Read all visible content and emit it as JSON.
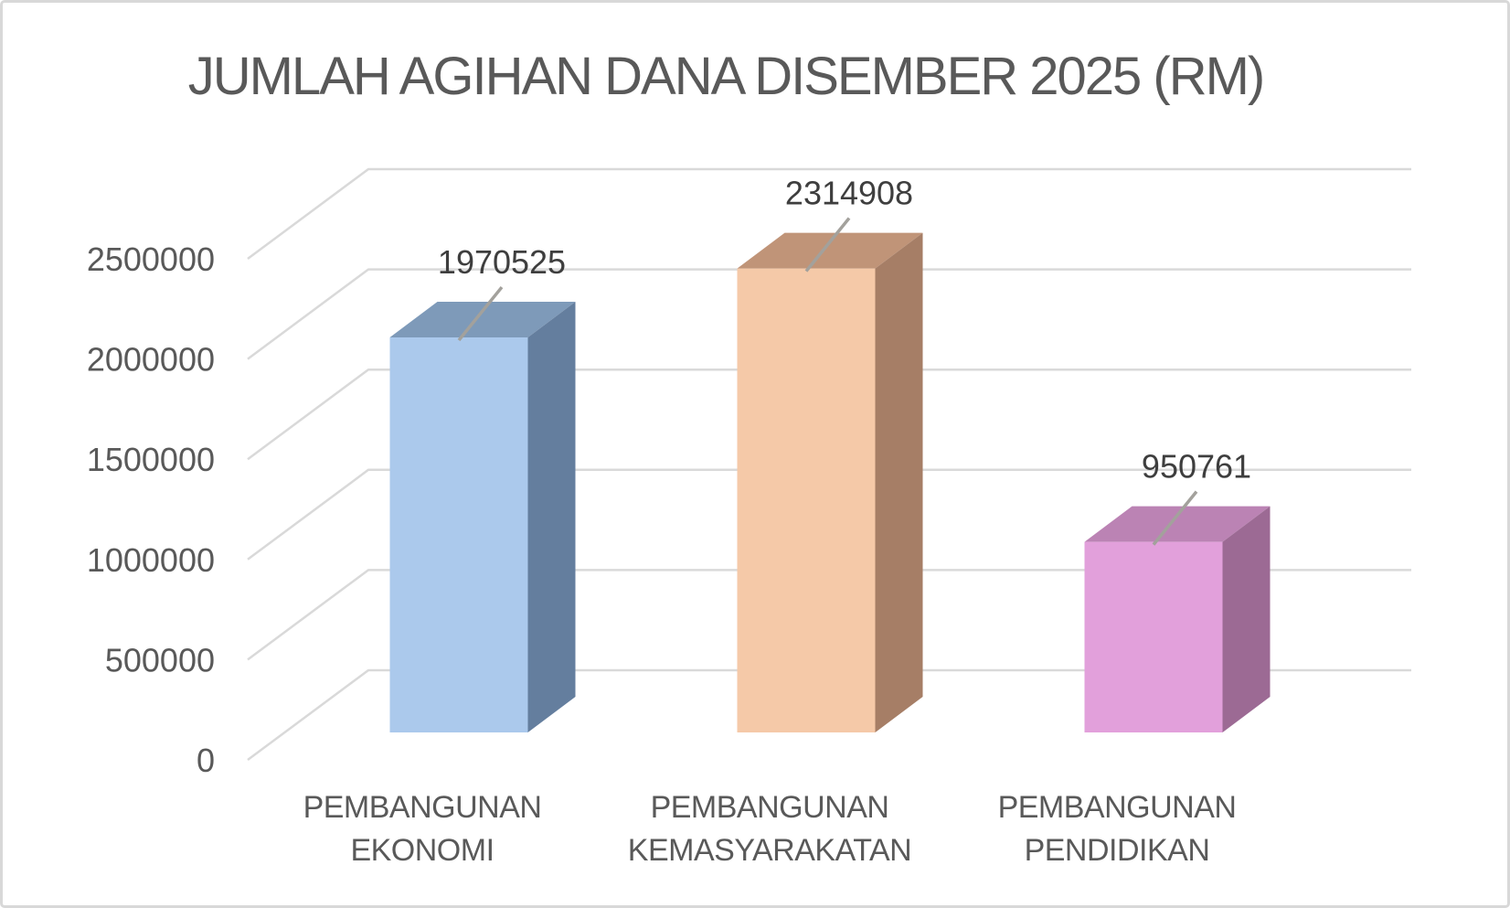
{
  "chart_data": {
    "type": "bar",
    "style": "3d-column",
    "title": "JUMLAH AGIHAN DANA DISEMBER 2025 (RM)",
    "categories": [
      "PEMBANGUNAN EKONOMI",
      "PEMBANGUNAN KEMASYARAKATAN",
      "PEMBANGUNAN PENDIDIKAN"
    ],
    "category_lines": [
      [
        "PEMBANGUNAN",
        "EKONOMI"
      ],
      [
        "PEMBANGUNAN",
        "KEMASYARAKATAN"
      ],
      [
        "PEMBANGUNAN",
        "PENDIDIKAN"
      ]
    ],
    "values": [
      1970525,
      2314908,
      950761
    ],
    "data_labels": [
      "1970525",
      "2314908",
      "950761"
    ],
    "xlabel": "",
    "ylabel": "",
    "ylim": [
      0,
      2500000
    ],
    "y_ticks": [
      0,
      500000,
      1000000,
      1500000,
      2000000,
      2500000
    ],
    "y_tick_labels": [
      "0",
      "500000",
      "1000000",
      "1500000",
      "2000000",
      "2500000"
    ],
    "grid": true,
    "legend": false,
    "colors": {
      "bars": [
        {
          "name": "blue",
          "front": "#ABC9EC",
          "top": "#7E9AB9",
          "side": "#647E9E"
        },
        {
          "name": "peach",
          "front": "#F5C9A8",
          "top": "#C09478",
          "side": "#A67E66"
        },
        {
          "name": "pink",
          "front": "#E2A0DB",
          "top": "#BB83B4",
          "side": "#9C6A94"
        }
      ],
      "gridline": "#D9D9D9",
      "leader_line": "#A3A19C",
      "title_text": "#595959",
      "axis_text": "#595959",
      "data_label_text": "#3E3E3E",
      "background": "#FFFFFF",
      "frame_border": "#D8D8D8"
    }
  }
}
